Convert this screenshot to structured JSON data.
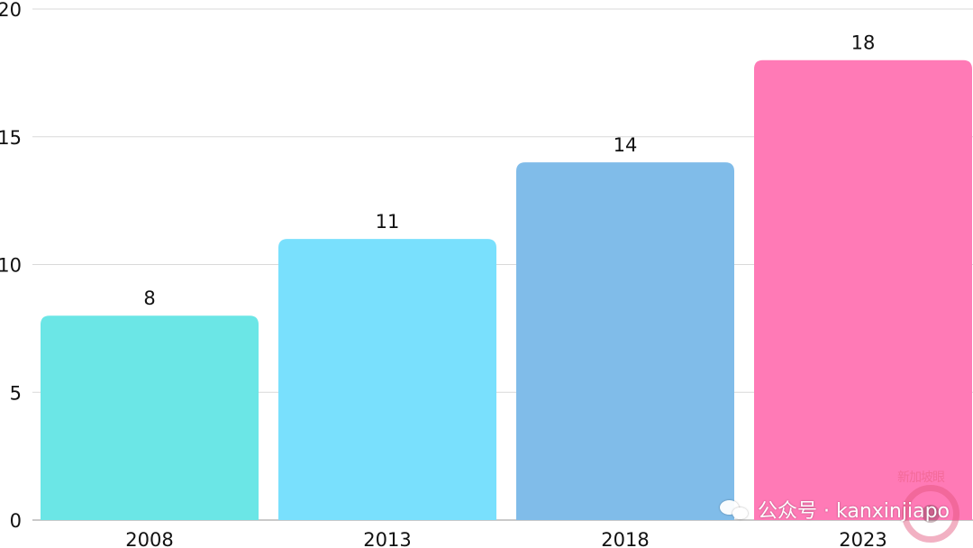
{
  "chart_data": {
    "type": "bar",
    "categories": [
      "2008",
      "2013",
      "2018",
      "2023"
    ],
    "values": [
      8,
      11,
      14,
      18
    ],
    "ylim": [
      0,
      20
    ],
    "yticks": [
      0,
      5,
      10,
      15,
      20
    ],
    "grid": true,
    "colors": [
      "#6be6e6",
      "#79e0fd",
      "#80bce9",
      "#ff7ab6"
    ],
    "title": "",
    "xlabel": "",
    "ylabel": ""
  },
  "watermark": {
    "icon": "wechat-icon",
    "text": "公众号 · kanxinjiapo",
    "logo_text": "新加坡眼"
  }
}
